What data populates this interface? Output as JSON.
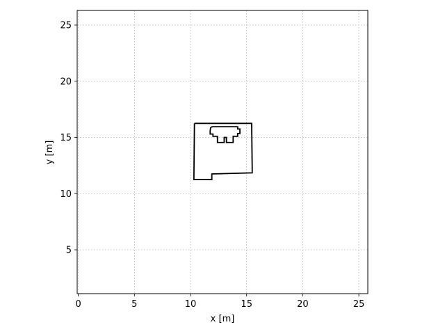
{
  "chart_data": {
    "type": "line",
    "xlabel": "x [m]",
    "ylabel": "y [m]",
    "xlim": [
      -0.1,
      25.8
    ],
    "ylim": [
      1.1,
      26.3
    ],
    "xticks": [
      0,
      5,
      10,
      15,
      20,
      25
    ],
    "yticks": [
      5,
      10,
      15,
      20,
      25
    ],
    "grid": true,
    "series": [
      {
        "points": [
          [
            10.35,
            16.25
          ],
          [
            15.45,
            16.25
          ],
          [
            15.5,
            11.85
          ],
          [
            11.9,
            11.75
          ],
          [
            11.9,
            11.25
          ],
          [
            10.3,
            11.25
          ],
          [
            10.35,
            16.25
          ]
        ]
      },
      {
        "points": [
          [
            11.8,
            15.9
          ],
          [
            11.95,
            15.95
          ],
          [
            14.2,
            15.95
          ],
          [
            14.2,
            15.75
          ],
          [
            14.4,
            15.75
          ],
          [
            14.4,
            15.35
          ],
          [
            14.2,
            15.35
          ],
          [
            14.2,
            15.1
          ],
          [
            13.8,
            15.1
          ],
          [
            13.8,
            14.55
          ],
          [
            13.2,
            14.55
          ],
          [
            13.2,
            15.0
          ],
          [
            13.0,
            15.0
          ],
          [
            13.0,
            14.55
          ],
          [
            12.4,
            14.55
          ],
          [
            12.4,
            15.1
          ],
          [
            12.0,
            15.1
          ],
          [
            12.0,
            15.3
          ],
          [
            11.75,
            15.3
          ],
          [
            11.75,
            15.6
          ],
          [
            11.8,
            15.9
          ]
        ]
      }
    ]
  }
}
